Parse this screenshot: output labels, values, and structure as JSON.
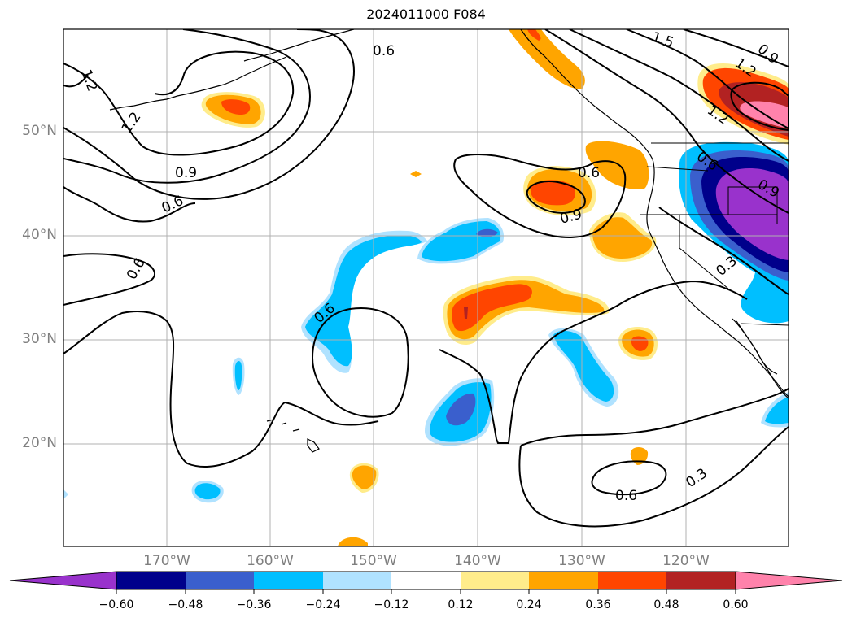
{
  "title": "2024011000 F084",
  "lat_labels": [
    "50°N",
    "40°N",
    "30°N",
    "20°N"
  ],
  "lon_labels": [
    "170°W",
    "160°W",
    "150°W",
    "140°W",
    "130°W",
    "120°W"
  ],
  "colorbar": {
    "tick_labels": [
      "−0.60",
      "−0.48",
      "−0.36",
      "−0.24",
      "−0.12",
      "0.12",
      "0.24",
      "0.36",
      "0.48",
      "0.60"
    ],
    "colors": [
      "#9932cc",
      "#00008b",
      "#3a5fcd",
      "#00bfff",
      "#b0e2ff",
      "#ffffff",
      "#ffec8b",
      "#ffa500",
      "#ff4500",
      "#b22222",
      "#ff82ab"
    ]
  },
  "contour_labels": {
    "l1": "0.6",
    "l2": "1.5",
    "l3": "0.9",
    "l4": "1.2",
    "l5": "1.2",
    "l6": "1.2",
    "l7": "1.2",
    "l8": "0.9",
    "l9": "0.6",
    "l10": "0.6",
    "l11": "0.9",
    "l12": "0.6",
    "l13": "0.9",
    "l14": "0.6",
    "l15": "0.3",
    "l16": "0.6",
    "l17": "0.6",
    "l18": "0.3"
  }
}
